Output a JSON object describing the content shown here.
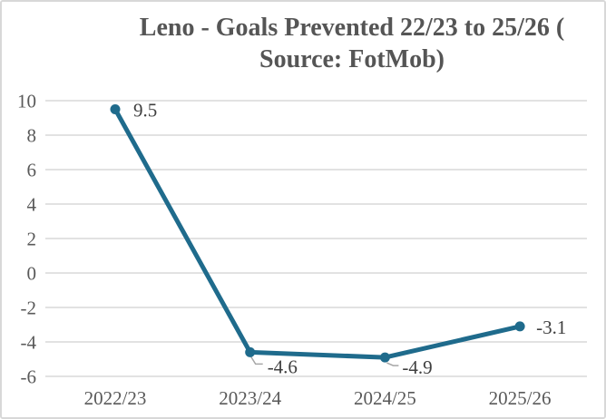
{
  "figure": {
    "title_line1": "Leno - Goals Prevented 22/23 to 25/26 (",
    "title_line2": "Source: FotMob)"
  },
  "chart_data": {
    "type": "line",
    "title": "Leno - Goals Prevented 22/23 to 25/26 ( Source: FotMob)",
    "categories": [
      "2022/23",
      "2023/24",
      "2024/25",
      "2025/26"
    ],
    "series": [
      {
        "name": "Goals Prevented",
        "values": [
          9.5,
          -4.6,
          -4.9,
          -3.1
        ]
      }
    ],
    "data_labels": [
      "9.5",
      "-4.6",
      "-4.9",
      "-3.1"
    ],
    "yticks": [
      10,
      8,
      6,
      4,
      2,
      0,
      -2,
      -4,
      -6
    ],
    "ylim": [
      -6,
      10
    ],
    "xlabel": "",
    "ylabel": "",
    "grid": true,
    "legend": "none",
    "colors": {
      "line": "#1f6b8c",
      "marker": "#1f6b8c",
      "gridline": "#d9d9d9",
      "border": "#d8d8d8",
      "title_text": "#555555",
      "tick_text": "#595959",
      "data_label_text": "#3f3f3f",
      "leader_line": "#a6a6a6",
      "background": "#ffffff"
    }
  }
}
